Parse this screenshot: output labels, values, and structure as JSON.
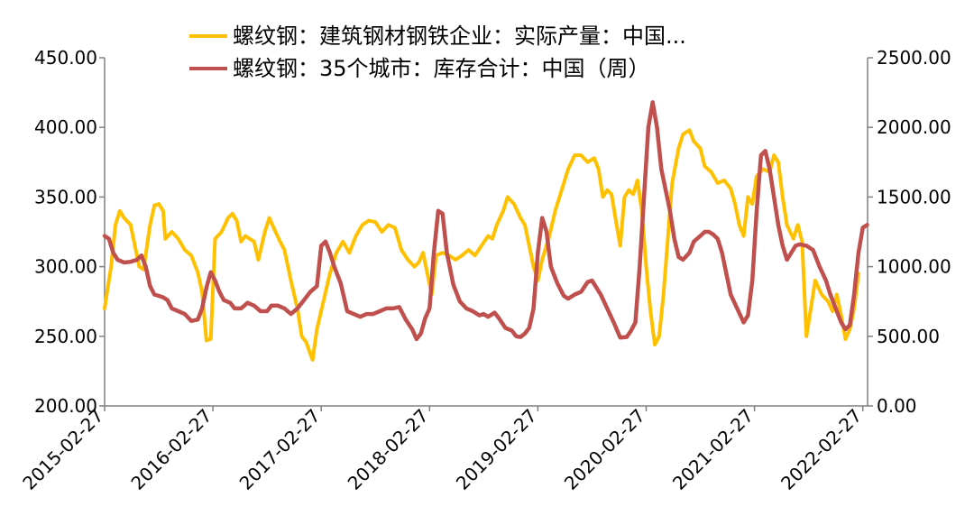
{
  "chart_data": {
    "type": "line",
    "x_tick_labels": [
      "2015-02-27",
      "2016-02-27",
      "2017-02-27",
      "2018-02-27",
      "2019-02-27",
      "2020-02-27",
      "2021-02-27",
      "2022-02-27"
    ],
    "y_left": {
      "ticks": [
        "200.00",
        "250.00",
        "300.00",
        "350.00",
        "400.00",
        "450.00"
      ],
      "ylim": [
        200,
        450
      ]
    },
    "y_right": {
      "ticks": [
        "0.00",
        "500.00",
        "1000.00",
        "1500.00",
        "2000.00",
        "2500.00"
      ],
      "ylim": [
        0,
        2500
      ]
    },
    "legend_position": "top",
    "grid": false,
    "series": [
      {
        "name": "螺纹钢：建筑钢材钢铁企业：实际产量：中国...",
        "axis": "left",
        "color": "#FFC000",
        "points": [
          [
            2015.16,
            270
          ],
          [
            2015.22,
            300
          ],
          [
            2015.26,
            330
          ],
          [
            2015.3,
            340
          ],
          [
            2015.34,
            335
          ],
          [
            2015.4,
            330
          ],
          [
            2015.44,
            315
          ],
          [
            2015.48,
            300
          ],
          [
            2015.52,
            298
          ],
          [
            2015.58,
            330
          ],
          [
            2015.62,
            344
          ],
          [
            2015.66,
            345
          ],
          [
            2015.7,
            340
          ],
          [
            2015.72,
            320
          ],
          [
            2015.78,
            325
          ],
          [
            2015.84,
            320
          ],
          [
            2015.9,
            312
          ],
          [
            2015.96,
            308
          ],
          [
            2016.02,
            296
          ],
          [
            2016.06,
            282
          ],
          [
            2016.1,
            247
          ],
          [
            2016.14,
            248
          ],
          [
            2016.18,
            320
          ],
          [
            2016.24,
            325
          ],
          [
            2016.3,
            335
          ],
          [
            2016.34,
            338
          ],
          [
            2016.38,
            333
          ],
          [
            2016.42,
            318
          ],
          [
            2016.46,
            322
          ],
          [
            2016.5,
            320
          ],
          [
            2016.54,
            318
          ],
          [
            2016.58,
            305
          ],
          [
            2016.64,
            325
          ],
          [
            2016.68,
            335
          ],
          [
            2016.72,
            328
          ],
          [
            2016.78,
            318
          ],
          [
            2016.82,
            312
          ],
          [
            2016.88,
            290
          ],
          [
            2016.94,
            270
          ],
          [
            2016.98,
            250
          ],
          [
            2017.02,
            246
          ],
          [
            2017.08,
            233
          ],
          [
            2017.12,
            255
          ],
          [
            2017.18,
            275
          ],
          [
            2017.24,
            295
          ],
          [
            2017.3,
            310
          ],
          [
            2017.36,
            318
          ],
          [
            2017.42,
            310
          ],
          [
            2017.48,
            322
          ],
          [
            2017.54,
            330
          ],
          [
            2017.6,
            333
          ],
          [
            2017.66,
            332
          ],
          [
            2017.72,
            325
          ],
          [
            2017.78,
            330
          ],
          [
            2017.84,
            328
          ],
          [
            2017.9,
            312
          ],
          [
            2017.96,
            305
          ],
          [
            2018.02,
            300
          ],
          [
            2018.06,
            303
          ],
          [
            2018.1,
            310
          ],
          [
            2018.14,
            295
          ],
          [
            2018.18,
            280
          ],
          [
            2018.22,
            308
          ],
          [
            2018.28,
            310
          ],
          [
            2018.34,
            308
          ],
          [
            2018.4,
            305
          ],
          [
            2018.46,
            308
          ],
          [
            2018.52,
            312
          ],
          [
            2018.58,
            308
          ],
          [
            2018.64,
            315
          ],
          [
            2018.7,
            322
          ],
          [
            2018.74,
            320
          ],
          [
            2018.78,
            330
          ],
          [
            2018.84,
            340
          ],
          [
            2018.88,
            350
          ],
          [
            2018.94,
            345
          ],
          [
            2019.0,
            335
          ],
          [
            2019.04,
            330
          ],
          [
            2019.08,
            315
          ],
          [
            2019.12,
            300
          ],
          [
            2019.16,
            290
          ],
          [
            2019.2,
            305
          ],
          [
            2019.26,
            320
          ],
          [
            2019.32,
            340
          ],
          [
            2019.38,
            355
          ],
          [
            2019.44,
            370
          ],
          [
            2019.5,
            380
          ],
          [
            2019.56,
            380
          ],
          [
            2019.62,
            375
          ],
          [
            2019.68,
            378
          ],
          [
            2019.72,
            370
          ],
          [
            2019.76,
            350
          ],
          [
            2019.8,
            355
          ],
          [
            2019.84,
            352
          ],
          [
            2019.88,
            333
          ],
          [
            2019.92,
            315
          ],
          [
            2019.96,
            350
          ],
          [
            2020.0,
            355
          ],
          [
            2020.04,
            352
          ],
          [
            2020.08,
            362
          ],
          [
            2020.12,
            340
          ],
          [
            2020.16,
            300
          ],
          [
            2020.2,
            268
          ],
          [
            2020.24,
            244
          ],
          [
            2020.28,
            250
          ],
          [
            2020.32,
            280
          ],
          [
            2020.36,
            320
          ],
          [
            2020.4,
            360
          ],
          [
            2020.46,
            385
          ],
          [
            2020.5,
            395
          ],
          [
            2020.56,
            398
          ],
          [
            2020.6,
            390
          ],
          [
            2020.66,
            385
          ],
          [
            2020.7,
            372
          ],
          [
            2020.76,
            368
          ],
          [
            2020.82,
            360
          ],
          [
            2020.88,
            362
          ],
          [
            2020.94,
            356
          ],
          [
            2020.98,
            345
          ],
          [
            2021.02,
            330
          ],
          [
            2021.06,
            322
          ],
          [
            2021.1,
            350
          ],
          [
            2021.14,
            345
          ],
          [
            2021.18,
            365
          ],
          [
            2021.24,
            370
          ],
          [
            2021.3,
            368
          ],
          [
            2021.34,
            380
          ],
          [
            2021.38,
            375
          ],
          [
            2021.42,
            350
          ],
          [
            2021.46,
            330
          ],
          [
            2021.52,
            320
          ],
          [
            2021.56,
            330
          ],
          [
            2021.6,
            318
          ],
          [
            2021.64,
            250
          ],
          [
            2021.68,
            270
          ],
          [
            2021.72,
            290
          ],
          [
            2021.78,
            280
          ],
          [
            2021.84,
            275
          ],
          [
            2021.88,
            268
          ],
          [
            2021.92,
            280
          ],
          [
            2021.96,
            265
          ],
          [
            2022.0,
            248
          ],
          [
            2022.04,
            255
          ],
          [
            2022.08,
            270
          ],
          [
            2022.12,
            295
          ]
        ]
      },
      {
        "name": "螺纹钢：35个城市：库存合计：中国（周）",
        "axis": "right",
        "color": "#C0504D",
        "points": [
          [
            2015.16,
            1220
          ],
          [
            2015.2,
            1200
          ],
          [
            2015.24,
            1100
          ],
          [
            2015.28,
            1050
          ],
          [
            2015.34,
            1030
          ],
          [
            2015.4,
            1035
          ],
          [
            2015.46,
            1050
          ],
          [
            2015.5,
            1080
          ],
          [
            2015.54,
            1000
          ],
          [
            2015.58,
            860
          ],
          [
            2015.62,
            800
          ],
          [
            2015.66,
            790
          ],
          [
            2015.7,
            780
          ],
          [
            2015.74,
            760
          ],
          [
            2015.78,
            700
          ],
          [
            2015.84,
            680
          ],
          [
            2015.9,
            660
          ],
          [
            2015.96,
            610
          ],
          [
            2016.02,
            620
          ],
          [
            2016.06,
            700
          ],
          [
            2016.1,
            850
          ],
          [
            2016.14,
            960
          ],
          [
            2016.18,
            900
          ],
          [
            2016.22,
            820
          ],
          [
            2016.26,
            760
          ],
          [
            2016.32,
            740
          ],
          [
            2016.36,
            700
          ],
          [
            2016.42,
            700
          ],
          [
            2016.48,
            740
          ],
          [
            2016.54,
            720
          ],
          [
            2016.6,
            680
          ],
          [
            2016.66,
            680
          ],
          [
            2016.7,
            720
          ],
          [
            2016.76,
            720
          ],
          [
            2016.82,
            700
          ],
          [
            2016.88,
            660
          ],
          [
            2016.94,
            700
          ],
          [
            2017.0,
            760
          ],
          [
            2017.06,
            820
          ],
          [
            2017.12,
            860
          ],
          [
            2017.16,
            1150
          ],
          [
            2017.2,
            1180
          ],
          [
            2017.24,
            1100
          ],
          [
            2017.28,
            1000
          ],
          [
            2017.34,
            880
          ],
          [
            2017.4,
            680
          ],
          [
            2017.46,
            660
          ],
          [
            2017.52,
            640
          ],
          [
            2017.58,
            660
          ],
          [
            2017.64,
            660
          ],
          [
            2017.7,
            680
          ],
          [
            2017.76,
            700
          ],
          [
            2017.82,
            700
          ],
          [
            2017.88,
            710
          ],
          [
            2017.94,
            620
          ],
          [
            2018.0,
            550
          ],
          [
            2018.04,
            480
          ],
          [
            2018.08,
            520
          ],
          [
            2018.12,
            630
          ],
          [
            2018.16,
            700
          ],
          [
            2018.2,
            1100
          ],
          [
            2018.24,
            1400
          ],
          [
            2018.28,
            1380
          ],
          [
            2018.32,
            1100
          ],
          [
            2018.38,
            870
          ],
          [
            2018.44,
            750
          ],
          [
            2018.5,
            700
          ],
          [
            2018.56,
            680
          ],
          [
            2018.62,
            650
          ],
          [
            2018.66,
            660
          ],
          [
            2018.7,
            640
          ],
          [
            2018.76,
            670
          ],
          [
            2018.8,
            630
          ],
          [
            2018.86,
            560
          ],
          [
            2018.92,
            540
          ],
          [
            2018.96,
            500
          ],
          [
            2019.0,
            495
          ],
          [
            2019.04,
            520
          ],
          [
            2019.08,
            560
          ],
          [
            2019.12,
            700
          ],
          [
            2019.16,
            1100
          ],
          [
            2019.2,
            1350
          ],
          [
            2019.24,
            1250
          ],
          [
            2019.28,
            1000
          ],
          [
            2019.34,
            880
          ],
          [
            2019.4,
            790
          ],
          [
            2019.44,
            770
          ],
          [
            2019.5,
            800
          ],
          [
            2019.56,
            820
          ],
          [
            2019.62,
            890
          ],
          [
            2019.66,
            900
          ],
          [
            2019.7,
            850
          ],
          [
            2019.74,
            800
          ],
          [
            2019.8,
            700
          ],
          [
            2019.86,
            600
          ],
          [
            2019.92,
            490
          ],
          [
            2019.98,
            495
          ],
          [
            2020.02,
            540
          ],
          [
            2020.06,
            600
          ],
          [
            2020.1,
            1000
          ],
          [
            2020.14,
            1500
          ],
          [
            2020.18,
            2000
          ],
          [
            2020.22,
            2180
          ],
          [
            2020.26,
            2000
          ],
          [
            2020.3,
            1700
          ],
          [
            2020.34,
            1550
          ],
          [
            2020.38,
            1400
          ],
          [
            2020.42,
            1200
          ],
          [
            2020.46,
            1070
          ],
          [
            2020.5,
            1050
          ],
          [
            2020.56,
            1100
          ],
          [
            2020.6,
            1180
          ],
          [
            2020.66,
            1220
          ],
          [
            2020.7,
            1250
          ],
          [
            2020.74,
            1250
          ],
          [
            2020.78,
            1230
          ],
          [
            2020.82,
            1200
          ],
          [
            2020.86,
            1100
          ],
          [
            2020.9,
            950
          ],
          [
            2020.94,
            800
          ],
          [
            2021.0,
            700
          ],
          [
            2021.06,
            600
          ],
          [
            2021.1,
            650
          ],
          [
            2021.14,
            900
          ],
          [
            2021.18,
            1400
          ],
          [
            2021.22,
            1800
          ],
          [
            2021.26,
            1830
          ],
          [
            2021.3,
            1700
          ],
          [
            2021.34,
            1500
          ],
          [
            2021.38,
            1300
          ],
          [
            2021.42,
            1150
          ],
          [
            2021.46,
            1050
          ],
          [
            2021.5,
            1100
          ],
          [
            2021.54,
            1150
          ],
          [
            2021.58,
            1160
          ],
          [
            2021.64,
            1150
          ],
          [
            2021.7,
            1120
          ],
          [
            2021.76,
            1000
          ],
          [
            2021.82,
            900
          ],
          [
            2021.86,
            800
          ],
          [
            2021.9,
            720
          ],
          [
            2021.96,
            600
          ],
          [
            2022.0,
            550
          ],
          [
            2022.04,
            580
          ],
          [
            2022.08,
            800
          ],
          [
            2022.12,
            1100
          ],
          [
            2022.16,
            1280
          ],
          [
            2022.2,
            1300
          ]
        ]
      }
    ]
  }
}
